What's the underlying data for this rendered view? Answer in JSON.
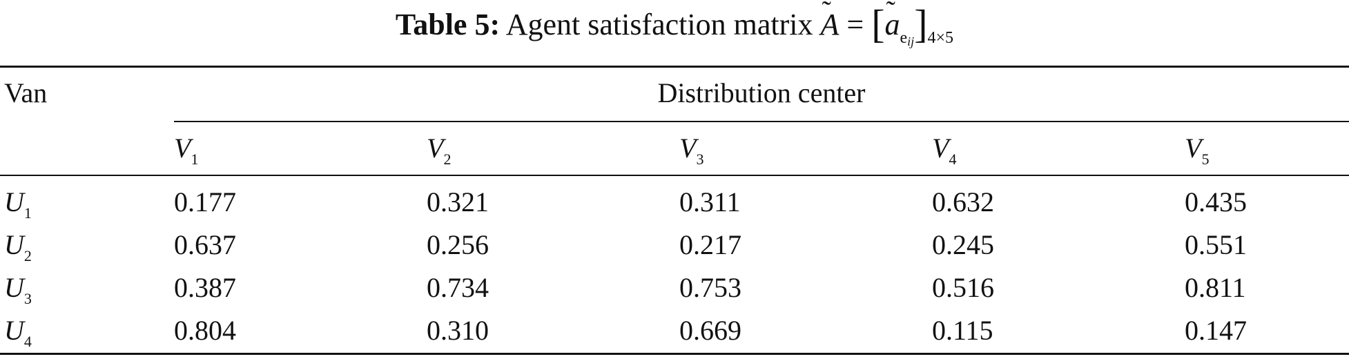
{
  "caption": {
    "label": "Table 5:",
    "text": "Agent satisfaction matrix",
    "matrix_symbol": "A",
    "equals": "=",
    "element_symbol": "a",
    "element_subscript": "e",
    "element_sub_subscript": "ij",
    "dimension": "4×5"
  },
  "table": {
    "row_header": "Van",
    "group_header": "Distribution center",
    "columns": [
      {
        "symbol": "V",
        "index": "1"
      },
      {
        "symbol": "V",
        "index": "2"
      },
      {
        "symbol": "V",
        "index": "3"
      },
      {
        "symbol": "V",
        "index": "4"
      },
      {
        "symbol": "V",
        "index": "5"
      }
    ],
    "rows": [
      {
        "symbol": "U",
        "index": "1",
        "values": [
          "0.177",
          "0.321",
          "0.311",
          "0.632",
          "0.435"
        ]
      },
      {
        "symbol": "U",
        "index": "2",
        "values": [
          "0.637",
          "0.256",
          "0.217",
          "0.245",
          "0.551"
        ]
      },
      {
        "symbol": "U",
        "index": "3",
        "values": [
          "0.387",
          "0.734",
          "0.753",
          "0.516",
          "0.811"
        ]
      },
      {
        "symbol": "U",
        "index": "4",
        "values": [
          "0.804",
          "0.310",
          "0.669",
          "0.115",
          "0.147"
        ]
      }
    ]
  }
}
